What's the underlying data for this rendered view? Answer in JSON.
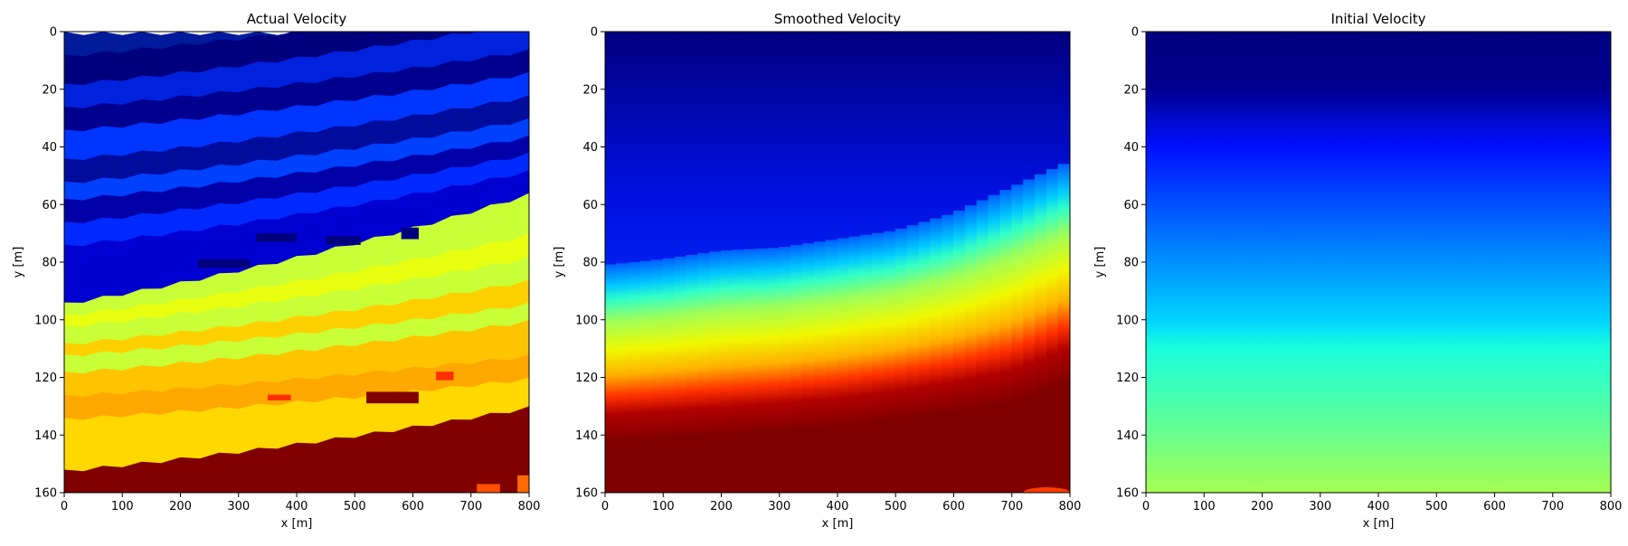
{
  "chart_data": [
    {
      "type": "heatmap",
      "title": "Actual Velocity",
      "xlabel": "x [m]",
      "ylabel": "y [m]",
      "xlim": [
        0,
        800
      ],
      "ylim": [
        160,
        0
      ],
      "xticks": [
        "0",
        "100",
        "200",
        "300",
        "400",
        "500",
        "600",
        "700",
        "800"
      ],
      "yticks": [
        "0",
        "20",
        "40",
        "60",
        "80",
        "100",
        "120",
        "140",
        "160"
      ],
      "colormap": "jet",
      "field": "layered",
      "layers": [
        {
          "y_left": 0,
          "y_right": 0,
          "color": "#001a9c"
        },
        {
          "y_left": 8,
          "y_right": -12,
          "color": "#00007f"
        },
        {
          "y_left": 18,
          "y_right": -4,
          "color": "#0022dd"
        },
        {
          "y_left": 26,
          "y_right": 6,
          "color": "#00008f"
        },
        {
          "y_left": 34,
          "y_right": 14,
          "color": "#0035ff"
        },
        {
          "y_left": 44,
          "y_right": 22,
          "color": "#000c9c"
        },
        {
          "y_left": 52,
          "y_right": 30,
          "color": "#0040ff"
        },
        {
          "y_left": 58,
          "y_right": 36,
          "color": "#0000a8"
        },
        {
          "y_left": 66,
          "y_right": 42,
          "color": "#0029ff"
        },
        {
          "y_left": 74,
          "y_right": 48,
          "color": "#0000d0"
        },
        {
          "y_left": 94,
          "y_right": 56,
          "color": "#c8ff37"
        },
        {
          "y_left": 98,
          "y_right": 70,
          "color": "#e8ff10"
        },
        {
          "y_left": 102,
          "y_right": 78,
          "color": "#c8ff37"
        },
        {
          "y_left": 108,
          "y_right": 86,
          "color": "#ffd000"
        },
        {
          "y_left": 112,
          "y_right": 94,
          "color": "#c8ff37"
        },
        {
          "y_left": 118,
          "y_right": 100,
          "color": "#ffc400"
        },
        {
          "y_left": 126,
          "y_right": 112,
          "color": "#ffa800"
        },
        {
          "y_left": 134,
          "y_right": 120,
          "color": "#ffd800"
        },
        {
          "y_left": 152,
          "y_right": 130,
          "color": "#800000"
        }
      ],
      "blobs": [
        {
          "x": 230,
          "y": 79,
          "w": 90,
          "h": 3,
          "color": "#00007f"
        },
        {
          "x": 330,
          "y": 70,
          "w": 70,
          "h": 3,
          "color": "#00007f"
        },
        {
          "x": 450,
          "y": 71,
          "w": 60,
          "h": 3,
          "color": "#00007f"
        },
        {
          "x": 580,
          "y": 68,
          "w": 30,
          "h": 4,
          "color": "#00007f"
        },
        {
          "x": 350,
          "y": 126,
          "w": 40,
          "h": 2,
          "color": "#ff3000"
        },
        {
          "x": 520,
          "y": 125,
          "w": 90,
          "h": 4,
          "color": "#800000"
        },
        {
          "x": 640,
          "y": 118,
          "w": 30,
          "h": 3,
          "color": "#ff3000"
        },
        {
          "x": 710,
          "y": 157,
          "w": 40,
          "h": 3,
          "color": "#ff5000"
        },
        {
          "x": 780,
          "y": 154,
          "w": 20,
          "h": 6,
          "color": "#ff6a00"
        }
      ]
    },
    {
      "type": "heatmap",
      "title": "Smoothed Velocity",
      "xlabel": "x [m]",
      "ylabel": "y [m]",
      "xlim": [
        0,
        800
      ],
      "ylim": [
        160,
        0
      ],
      "xticks": [
        "0",
        "100",
        "200",
        "300",
        "400",
        "500",
        "600",
        "700",
        "800"
      ],
      "yticks": [
        "0",
        "20",
        "40",
        "60",
        "80",
        "100",
        "120",
        "140",
        "160"
      ],
      "colormap": "jet",
      "field": "smoothed",
      "boundary": [
        {
          "x": 0,
          "y": 93
        },
        {
          "x": 100,
          "y": 91
        },
        {
          "x": 200,
          "y": 88
        },
        {
          "x": 300,
          "y": 87
        },
        {
          "x": 400,
          "y": 84
        },
        {
          "x": 500,
          "y": 81
        },
        {
          "x": 600,
          "y": 75
        },
        {
          "x": 700,
          "y": 66
        },
        {
          "x": 800,
          "y": 57
        }
      ],
      "base_top": [
        {
          "x": 0,
          "y": 141
        },
        {
          "x": 200,
          "y": 139
        },
        {
          "x": 400,
          "y": 136
        },
        {
          "x": 600,
          "y": 131
        },
        {
          "x": 700,
          "y": 128
        },
        {
          "x": 800,
          "y": 120
        }
      ]
    },
    {
      "type": "heatmap",
      "title": "Initial Velocity",
      "xlabel": "x [m]",
      "ylabel": "y [m]",
      "xlim": [
        0,
        800
      ],
      "ylim": [
        160,
        0
      ],
      "xticks": [
        "0",
        "100",
        "200",
        "300",
        "400",
        "500",
        "600",
        "700",
        "800"
      ],
      "yticks": [
        "0",
        "20",
        "40",
        "60",
        "80",
        "100",
        "120",
        "140",
        "160"
      ],
      "colormap": "jet",
      "field": "vertical-gradient",
      "stops": [
        {
          "depth": 0,
          "color": "#000080"
        },
        {
          "depth": 20,
          "color": "#000090"
        },
        {
          "depth": 40,
          "color": "#0010ff"
        },
        {
          "depth": 60,
          "color": "#0050ff"
        },
        {
          "depth": 80,
          "color": "#0090ff"
        },
        {
          "depth": 100,
          "color": "#00d4ff"
        },
        {
          "depth": 110,
          "color": "#1affdc"
        },
        {
          "depth": 125,
          "color": "#40ffb6"
        },
        {
          "depth": 140,
          "color": "#6aff8c"
        },
        {
          "depth": 160,
          "color": "#a6ff50"
        }
      ]
    }
  ]
}
